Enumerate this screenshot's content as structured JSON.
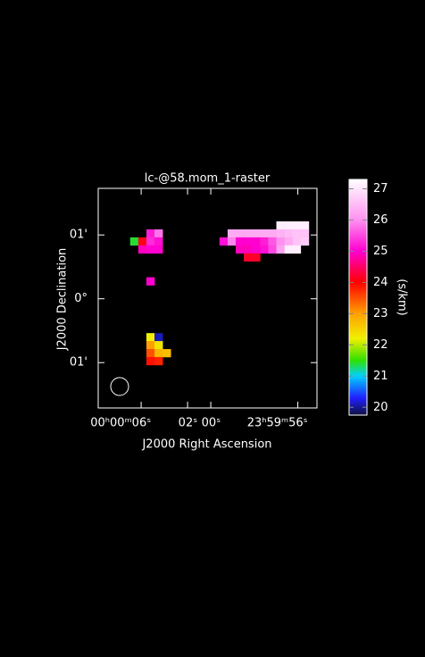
{
  "chart_data": {
    "type": "heatmap",
    "title": "lc-@58.mom_1-raster",
    "xlabel": "J2000 Right Ascension",
    "ylabel": "J2000 Declination",
    "colorbar_label": "(s/km)",
    "xlim": [
      9.7,
      -9.15
    ],
    "ylim": [
      -1.71,
      1.73
    ],
    "xticks": [
      {
        "value": 6,
        "label": "00ʰ00ᵐ06ˢ"
      },
      {
        "value": 2,
        "label": "02ˢ"
      },
      {
        "value": 0,
        "label": "00ˢ"
      },
      {
        "value": -7.5,
        "label": "23ʰ59ᵐ56ˢ"
      }
    ],
    "yticks": [
      {
        "value": 1,
        "label": "01'"
      },
      {
        "value": 0,
        "label": "0°"
      },
      {
        "value": -1,
        "label": "01'"
      }
    ],
    "zlim": [
      19.75,
      27.3
    ],
    "zticks": [
      20,
      21,
      22,
      23,
      24,
      25,
      26,
      27
    ],
    "colormap": [
      {
        "value": 19.75,
        "color": "#101040"
      },
      {
        "value": 20.3,
        "color": "#2020ff"
      },
      {
        "value": 21,
        "color": "#00d0ff"
      },
      {
        "value": 21.5,
        "color": "#30e000"
      },
      {
        "value": 22.2,
        "color": "#f0f000"
      },
      {
        "value": 23,
        "color": "#ffa000"
      },
      {
        "value": 24,
        "color": "#ff0000"
      },
      {
        "value": 25,
        "color": "#ff00d0"
      },
      {
        "value": 26,
        "color": "#ff90f0"
      },
      {
        "value": 27.3,
        "color": "#ffffff"
      }
    ],
    "x": [
      5.2,
      4.5,
      6.6,
      5.9,
      5.2,
      4.5,
      5.9,
      5.2,
      4.5,
      5.2,
      5.2,
      4.5,
      5.2,
      4.5,
      5.2,
      4.5,
      3.8,
      5.2,
      4.5,
      -6.0,
      -6.7,
      -7.4,
      -8.1,
      -1.8,
      -2.5,
      -3.2,
      -3.9,
      -4.6,
      -5.3,
      -6.0,
      -6.7,
      -7.4,
      -8.1,
      -1.1,
      -1.8,
      -2.5,
      -3.2,
      -3.9,
      -4.6,
      -5.3,
      -6.0,
      -6.7,
      -7.4,
      -8.1,
      -2.5,
      -3.2,
      -3.9,
      -4.6,
      -5.3,
      -6.0,
      -6.7,
      -7.4,
      -3.2,
      -3.9
    ],
    "y": [
      1.025,
      1.025,
      0.9,
      0.9,
      0.9,
      0.9,
      0.775,
      0.775,
      0.775,
      0.275,
      -0.6,
      -0.6,
      -0.725,
      -0.725,
      -0.85,
      -0.85,
      -0.85,
      -0.975,
      -0.975,
      1.15,
      1.15,
      1.15,
      1.15,
      1.025,
      1.025,
      1.025,
      1.025,
      1.025,
      1.025,
      1.025,
      1.025,
      1.025,
      1.025,
      0.9,
      0.9,
      0.9,
      0.9,
      0.9,
      0.9,
      0.9,
      0.9,
      0.9,
      0.9,
      0.9,
      0.775,
      0.775,
      0.775,
      0.775,
      0.775,
      0.775,
      0.775,
      0.775,
      0.65,
      0.65
    ],
    "values": [
      25.2,
      25.8,
      21.4,
      24.1,
      25.3,
      25.1,
      24.9,
      25,
      25,
      25,
      22.2,
      20.1,
      23,
      22.3,
      23.5,
      22.8,
      22.7,
      23.9,
      23.8,
      27.1,
      27.1,
      27.1,
      27.1,
      26.3,
      26.3,
      26.3,
      26.3,
      26.3,
      26.3,
      26.4,
      26.5,
      26.6,
      26.6,
      25.1,
      25.9,
      25,
      25,
      25,
      25.2,
      25.6,
      26,
      26.3,
      26.6,
      26.7,
      24.9,
      24.9,
      25,
      25.1,
      25.5,
      26.2,
      27.1,
      27.1,
      24.2,
      24.2
    ]
  }
}
